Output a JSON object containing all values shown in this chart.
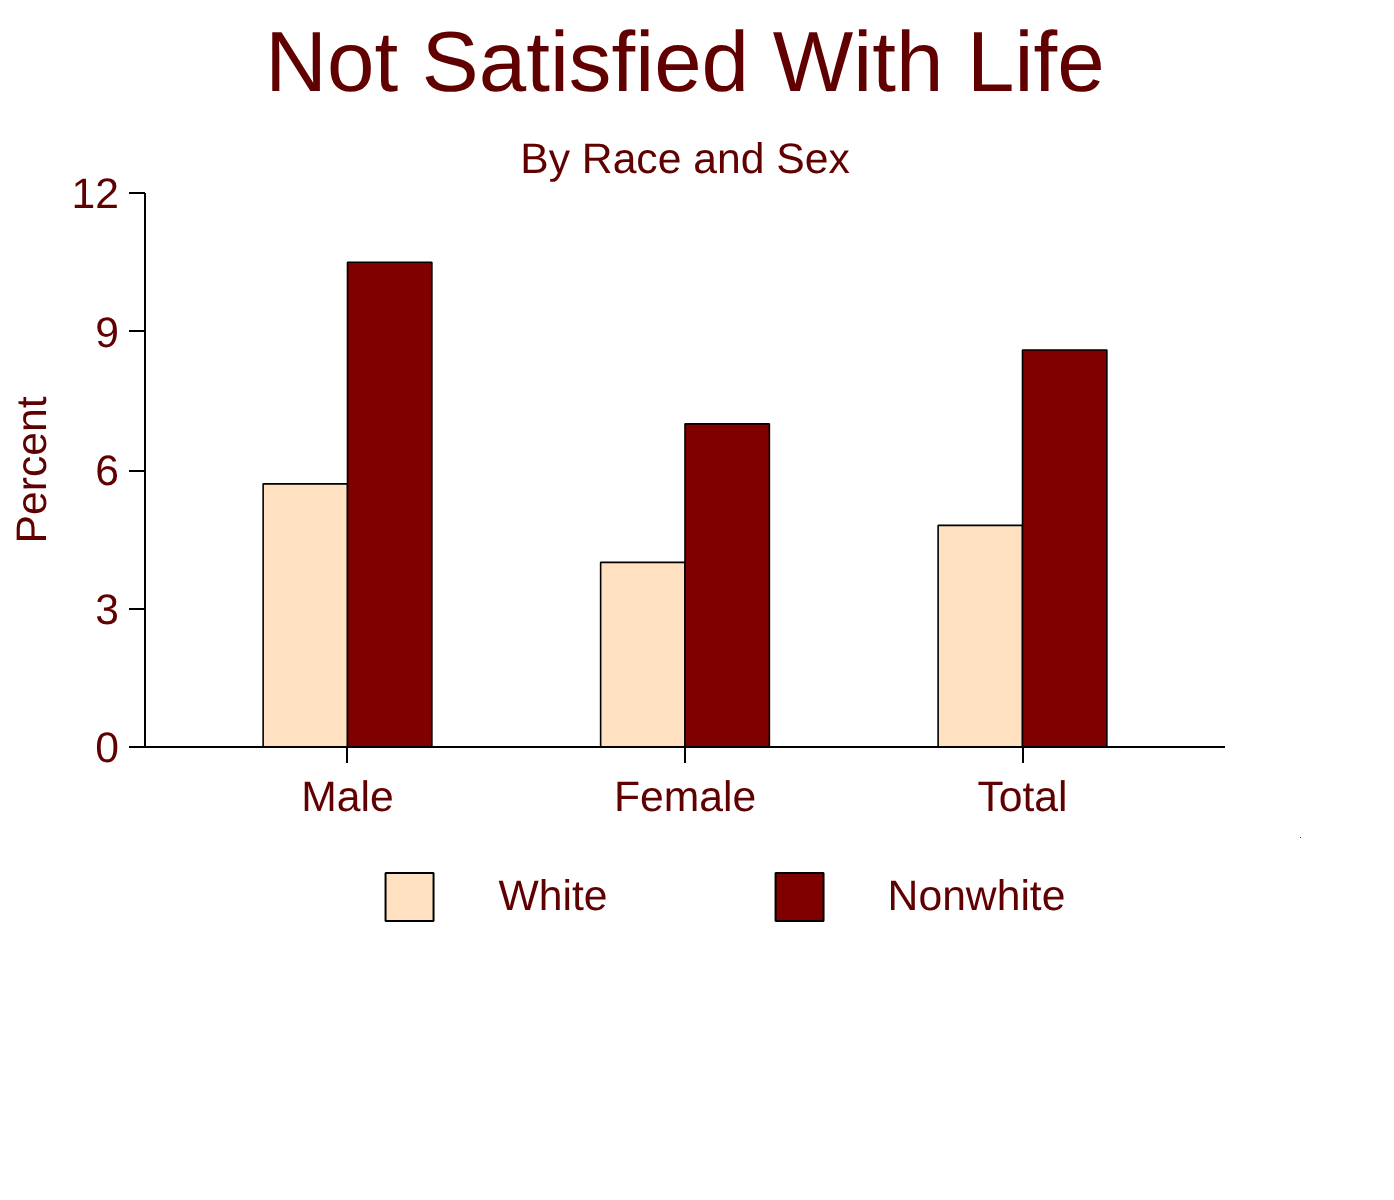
{
  "chart_data": {
    "type": "bar",
    "title": "Not Satisfied With Life",
    "subtitle": "By Race and Sex",
    "ylabel": "Percent",
    "categories": [
      "Male",
      "Female",
      "Total"
    ],
    "series": [
      {
        "name": "White",
        "color": "#ffe0c0",
        "values": [
          5.7,
          4.0,
          4.8
        ]
      },
      {
        "name": "Nonwhite",
        "color": "#800000",
        "values": [
          10.5,
          7.0,
          8.6
        ]
      }
    ],
    "ylim": [
      0,
      12
    ],
    "yticks": [
      0,
      3,
      6,
      9,
      12
    ],
    "grid": false,
    "legend": "bottom"
  }
}
